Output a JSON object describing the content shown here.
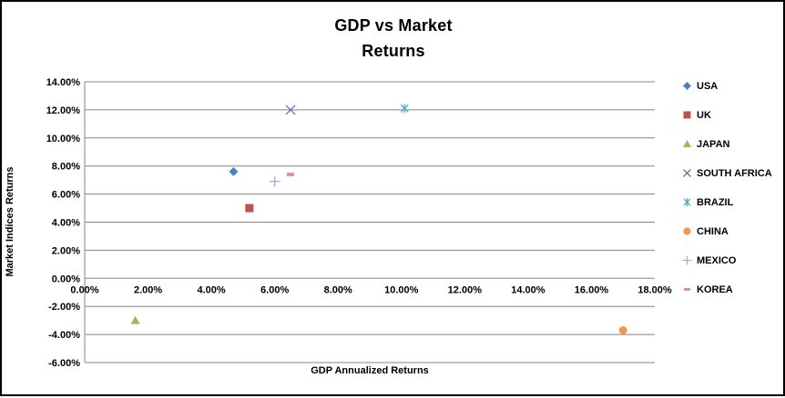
{
  "window": {
    "background": "#ffffff",
    "border_color": "#000000"
  },
  "chart_data": {
    "type": "scatter",
    "title": "GDP vs Market Returns",
    "title_lines": [
      "GDP vs Market",
      "Returns"
    ],
    "xlabel": "GDP Annualized Returns",
    "ylabel": "Market Indices Returns",
    "xlim": [
      0,
      18
    ],
    "ylim": [
      -6,
      14
    ],
    "grid": "horizontal-only",
    "gridline_color": "#848484",
    "axis_line_color": "#848484",
    "legend_position": "right",
    "x_ticks": {
      "values": [
        0,
        2,
        4,
        6,
        8,
        10,
        12,
        14,
        16,
        18
      ],
      "labels": [
        "0.00%",
        "2.00%",
        "4.00%",
        "6.00%",
        "8.00%",
        "10.00%",
        "12.00%",
        "14.00%",
        "16.00%",
        "18.00%"
      ]
    },
    "y_ticks": {
      "values": [
        14,
        12,
        10,
        8,
        6,
        4,
        2,
        0,
        -2,
        -4,
        -6
      ],
      "labels": [
        "14.00%",
        "12.00%",
        "10.00%",
        "8.00%",
        "6.00%",
        "4.00%",
        "2.00%",
        "0.00%",
        "-2.00%",
        "-4.00%",
        "-6.00%"
      ]
    },
    "series": [
      {
        "name": "USA",
        "marker": "diamond",
        "color": "#4F81BD",
        "x": 4.7,
        "y": 7.6
      },
      {
        "name": "UK",
        "marker": "square",
        "color": "#C0504D",
        "x": 5.2,
        "y": 5.0
      },
      {
        "name": "JAPAN",
        "marker": "triangle",
        "color": "#9BBB59",
        "x": 1.6,
        "y": -3.0
      },
      {
        "name": "SOUTH AFRICA",
        "marker": "x",
        "color": "#8064A2",
        "x": 6.5,
        "y": 12.0
      },
      {
        "name": "BRAZIL",
        "marker": "star",
        "color": "#4BACC6",
        "x": 10.1,
        "y": 12.1
      },
      {
        "name": "CHINA",
        "marker": "circle",
        "color": "#F79646",
        "x": 17.0,
        "y": -3.7
      },
      {
        "name": "MEXICO",
        "marker": "plus",
        "color": "#95B3D7",
        "x": 6.0,
        "y": 6.9
      },
      {
        "name": "KOREA",
        "marker": "dash",
        "color": "#D99694",
        "x": 6.5,
        "y": 7.4
      }
    ]
  }
}
